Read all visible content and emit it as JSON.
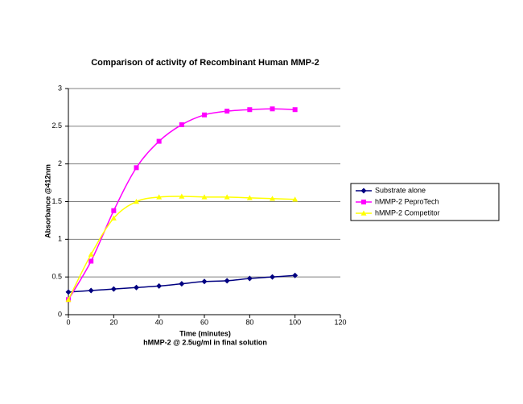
{
  "chart_data": {
    "type": "line",
    "title": "Comparison of activity of Recombinant Human MMP-2",
    "x_label": "Time (minutes)",
    "x_sublabel": "hMMP-2 @ 2.5ug/ml in final solution",
    "y_label": "Absorbance @412nm",
    "x": [
      0,
      10,
      20,
      30,
      40,
      50,
      60,
      70,
      80,
      90,
      100
    ],
    "series": [
      {
        "name": "Substrate alone",
        "color": "#000080",
        "marker": "diamond",
        "values": [
          0.3,
          0.32,
          0.34,
          0.36,
          0.38,
          0.41,
          0.44,
          0.45,
          0.48,
          0.5,
          0.52
        ]
      },
      {
        "name": "hMMP-2 PeproTech",
        "color": "#ff00ff",
        "marker": "square",
        "values": [
          0.2,
          0.71,
          1.38,
          1.95,
          2.3,
          2.52,
          2.65,
          2.7,
          2.72,
          2.73,
          2.72
        ]
      },
      {
        "name": "hMMP-2 Competitor",
        "color": "#ffff00",
        "marker": "triangle",
        "values": [
          0.2,
          0.8,
          1.28,
          1.5,
          1.56,
          1.57,
          1.56,
          1.56,
          1.55,
          1.54,
          1.53
        ]
      }
    ],
    "xlim": [
      0,
      120
    ],
    "xticks": [
      0,
      20,
      40,
      60,
      80,
      100,
      120
    ],
    "ylim": [
      0,
      3
    ],
    "yticks": [
      0,
      0.5,
      1,
      1.5,
      2,
      2.5,
      3
    ],
    "grid": true,
    "legend": "right"
  }
}
